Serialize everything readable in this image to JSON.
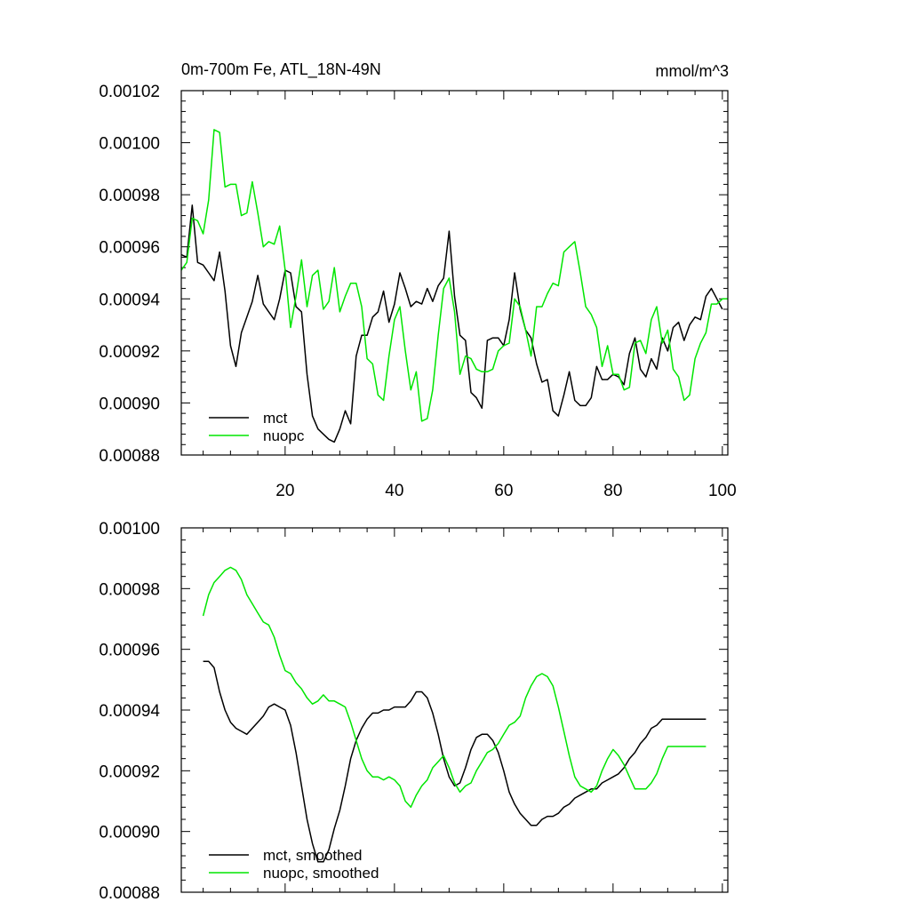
{
  "chart_data": [
    {
      "type": "line",
      "title": "0m-700m Fe, ATL_18N-49N",
      "units": "mmol/m^3",
      "xlabel": "",
      "ylabel": "",
      "xlim": [
        1,
        101
      ],
      "ylim": [
        0.00088,
        0.00102
      ],
      "xticks": [
        20,
        40,
        60,
        80,
        100
      ],
      "yticks": [
        0.00088,
        0.0009,
        0.00092,
        0.00094,
        0.00096,
        0.00098,
        0.001,
        0.00102
      ],
      "ytick_labels": [
        "0.00088",
        "0.00090",
        "0.00092",
        "0.00094",
        "0.00096",
        "0.00098",
        "0.00100",
        "0.00102"
      ],
      "legend": "bottom-left",
      "series": [
        {
          "name": "mct",
          "color": "#000000",
          "x": [
            1,
            2,
            3,
            4,
            5,
            6,
            7,
            8,
            9,
            10,
            11,
            12,
            13,
            14,
            15,
            16,
            17,
            18,
            19,
            20,
            21,
            22,
            23,
            24,
            25,
            26,
            27,
            28,
            29,
            30,
            31,
            32,
            33,
            34,
            35,
            36,
            37,
            38,
            39,
            40,
            41,
            42,
            43,
            44,
            45,
            46,
            47,
            48,
            49,
            50,
            51,
            52,
            53,
            54,
            55,
            56,
            57,
            58,
            59,
            60,
            61,
            62,
            63,
            64,
            65,
            66,
            67,
            68,
            69,
            70,
            71,
            72,
            73,
            74,
            75,
            76,
            77,
            78,
            79,
            80,
            81,
            82,
            83,
            84,
            85,
            86,
            87,
            88,
            89,
            90,
            91,
            92,
            93,
            94,
            95,
            96,
            97,
            98,
            99,
            100
          ],
          "values": [
            0.000957,
            0.000956,
            0.000976,
            0.000954,
            0.000953,
            0.00095,
            0.000947,
            0.000958,
            0.000943,
            0.000922,
            0.000914,
            0.000927,
            0.000933,
            0.000939,
            0.000949,
            0.000938,
            0.000935,
            0.000932,
            0.00094,
            0.000951,
            0.00095,
            0.000937,
            0.000935,
            0.000911,
            0.000895,
            0.00089,
            0.000888,
            0.000886,
            0.000885,
            0.00089,
            0.000897,
            0.000892,
            0.000918,
            0.000926,
            0.000926,
            0.000933,
            0.000935,
            0.000943,
            0.000931,
            0.000938,
            0.00095,
            0.000944,
            0.000937,
            0.000939,
            0.000938,
            0.000944,
            0.000939,
            0.000945,
            0.000948,
            0.000966,
            0.000941,
            0.000926,
            0.000924,
            0.000904,
            0.000902,
            0.000898,
            0.000924,
            0.000925,
            0.000925,
            0.000922,
            0.000932,
            0.00095,
            0.000936,
            0.000928,
            0.000925,
            0.000915,
            0.000908,
            0.000909,
            0.000897,
            0.000895,
            0.000903,
            0.000912,
            0.000901,
            0.000899,
            0.000899,
            0.000902,
            0.000914,
            0.000909,
            0.000909,
            0.000911,
            0.00091,
            0.000907,
            0.000919,
            0.000925,
            0.000913,
            0.00091,
            0.000917,
            0.000913,
            0.000925,
            0.00092,
            0.000929,
            0.000931,
            0.000924,
            0.00093,
            0.000933,
            0.000932,
            0.000941,
            0.000944,
            0.00094,
            0.000936
          ]
        },
        {
          "name": "nuopc",
          "color": "#00e600",
          "x": [
            1,
            2,
            3,
            4,
            5,
            6,
            7,
            8,
            9,
            10,
            11,
            12,
            13,
            14,
            15,
            16,
            17,
            18,
            19,
            20,
            21,
            22,
            23,
            24,
            25,
            26,
            27,
            28,
            29,
            30,
            31,
            32,
            33,
            34,
            35,
            36,
            37,
            38,
            39,
            40,
            41,
            42,
            43,
            44,
            45,
            46,
            47,
            48,
            49,
            50,
            51,
            52,
            53,
            54,
            55,
            56,
            57,
            58,
            59,
            60,
            61,
            62,
            63,
            64,
            65,
            66,
            67,
            68,
            69,
            70,
            71,
            72,
            73,
            74,
            75,
            76,
            77,
            78,
            79,
            80,
            81,
            82,
            83,
            84,
            85,
            86,
            87,
            88,
            89,
            90,
            91,
            92,
            93,
            94,
            95,
            96,
            97,
            98,
            99,
            100,
            101
          ],
          "values": [
            0.000951,
            0.000954,
            0.000971,
            0.00097,
            0.000965,
            0.000978,
            0.001005,
            0.001004,
            0.000983,
            0.000984,
            0.000984,
            0.000972,
            0.000973,
            0.000985,
            0.000973,
            0.00096,
            0.000962,
            0.000961,
            0.000968,
            0.000951,
            0.000929,
            0.000941,
            0.000955,
            0.000937,
            0.000949,
            0.000951,
            0.000936,
            0.000939,
            0.000952,
            0.000935,
            0.000941,
            0.000946,
            0.000946,
            0.000937,
            0.000917,
            0.000915,
            0.000903,
            0.000901,
            0.000918,
            0.000932,
            0.000937,
            0.00092,
            0.000905,
            0.000912,
            0.000893,
            0.000894,
            0.000905,
            0.000926,
            0.000944,
            0.000948,
            0.000935,
            0.000911,
            0.000918,
            0.000917,
            0.000913,
            0.000912,
            0.000912,
            0.000913,
            0.00092,
            0.000922,
            0.000923,
            0.00094,
            0.000937,
            0.000928,
            0.000918,
            0.000937,
            0.000937,
            0.000942,
            0.000946,
            0.000945,
            0.000958,
            0.00096,
            0.000962,
            0.00095,
            0.000937,
            0.000934,
            0.000929,
            0.000914,
            0.000922,
            0.000911,
            0.000911,
            0.000905,
            0.000906,
            0.000923,
            0.000924,
            0.000919,
            0.000932,
            0.000937,
            0.000923,
            0.000928,
            0.000913,
            0.00091,
            0.000901,
            0.000903,
            0.000917,
            0.000923,
            0.000927,
            0.000938,
            0.000938,
            0.00094,
            0.00094
          ]
        }
      ]
    },
    {
      "type": "line",
      "title": "",
      "xlabel": "",
      "ylabel": "",
      "xlim": [
        1,
        101
      ],
      "ylim": [
        0.00088,
        0.001
      ],
      "xticks": [
        20,
        40,
        60,
        80,
        100
      ],
      "yticks": [
        0.00088,
        0.0009,
        0.00092,
        0.00094,
        0.00096,
        0.00098,
        0.001
      ],
      "ytick_labels": [
        "0.00088",
        "0.00090",
        "0.00092",
        "0.00094",
        "0.00096",
        "0.00098",
        "0.00100"
      ],
      "legend": "bottom-left",
      "series": [
        {
          "name": "mct, smoothed",
          "color": "#000000",
          "x": [
            5,
            6,
            7,
            8,
            9,
            10,
            11,
            12,
            13,
            14,
            15,
            16,
            17,
            18,
            19,
            20,
            21,
            22,
            23,
            24,
            25,
            26,
            27,
            28,
            29,
            30,
            31,
            32,
            33,
            34,
            35,
            36,
            37,
            38,
            39,
            40,
            41,
            42,
            43,
            44,
            45,
            46,
            47,
            48,
            49,
            50,
            51,
            52,
            53,
            54,
            55,
            56,
            57,
            58,
            59,
            60,
            61,
            62,
            63,
            64,
            65,
            66,
            67,
            68,
            69,
            70,
            71,
            72,
            73,
            74,
            75,
            76,
            77,
            78,
            79,
            80,
            81,
            82,
            83,
            84,
            85,
            86,
            87,
            88,
            89,
            90,
            91,
            92,
            93,
            94,
            95,
            96,
            97
          ],
          "values": [
            0.000956,
            0.000956,
            0.000954,
            0.000946,
            0.00094,
            0.000936,
            0.000934,
            0.000933,
            0.000932,
            0.000934,
            0.000936,
            0.000938,
            0.000941,
            0.000942,
            0.000941,
            0.00094,
            0.000935,
            0.000926,
            0.000915,
            0.000904,
            0.000896,
            0.00089,
            0.00089,
            0.000894,
            0.000901,
            0.000907,
            0.000915,
            0.000924,
            0.00093,
            0.000934,
            0.000937,
            0.000939,
            0.000939,
            0.00094,
            0.00094,
            0.000941,
            0.000941,
            0.000941,
            0.000943,
            0.000946,
            0.000946,
            0.000944,
            0.000939,
            0.000932,
            0.000924,
            0.000918,
            0.000915,
            0.000916,
            0.000921,
            0.000927,
            0.000931,
            0.000932,
            0.000932,
            0.00093,
            0.000926,
            0.00092,
            0.000913,
            0.000909,
            0.000906,
            0.000904,
            0.000902,
            0.000902,
            0.000904,
            0.000905,
            0.000905,
            0.000906,
            0.000908,
            0.000909,
            0.000911,
            0.000912,
            0.000913,
            0.000914,
            0.000914,
            0.000916,
            0.000917,
            0.000918,
            0.000919,
            0.000921,
            0.000924,
            0.000926,
            0.000929,
            0.000931,
            0.000934,
            0.000935,
            0.000937,
            0.000937,
            0.000937,
            0.000937,
            0.000937,
            0.000937,
            0.000937,
            0.000937,
            0.000937
          ]
        },
        {
          "name": "nuopc, smoothed",
          "color": "#00e600",
          "x": [
            5,
            6,
            7,
            8,
            9,
            10,
            11,
            12,
            13,
            14,
            15,
            16,
            17,
            18,
            19,
            20,
            21,
            22,
            23,
            24,
            25,
            26,
            27,
            28,
            29,
            30,
            31,
            32,
            33,
            34,
            35,
            36,
            37,
            38,
            39,
            40,
            41,
            42,
            43,
            44,
            45,
            46,
            47,
            48,
            49,
            50,
            51,
            52,
            53,
            54,
            55,
            56,
            57,
            58,
            59,
            60,
            61,
            62,
            63,
            64,
            65,
            66,
            67,
            68,
            69,
            70,
            71,
            72,
            73,
            74,
            75,
            76,
            77,
            78,
            79,
            80,
            81,
            82,
            83,
            84,
            85,
            86,
            87,
            88,
            89,
            90,
            91,
            92,
            93,
            94,
            95,
            96,
            97
          ],
          "values": [
            0.000971,
            0.000978,
            0.000982,
            0.000984,
            0.000986,
            0.000987,
            0.000986,
            0.000983,
            0.000978,
            0.000975,
            0.000972,
            0.000969,
            0.000968,
            0.000964,
            0.000958,
            0.000953,
            0.000952,
            0.000949,
            0.000947,
            0.000944,
            0.000942,
            0.000943,
            0.000945,
            0.000943,
            0.000943,
            0.000942,
            0.000941,
            0.000936,
            0.00093,
            0.000924,
            0.00092,
            0.000918,
            0.000918,
            0.000917,
            0.000918,
            0.000917,
            0.000915,
            0.00091,
            0.000908,
            0.000912,
            0.000915,
            0.000917,
            0.000921,
            0.000923,
            0.000925,
            0.000921,
            0.000916,
            0.000913,
            0.000915,
            0.000916,
            0.00092,
            0.000923,
            0.000926,
            0.000927,
            0.000929,
            0.000932,
            0.000935,
            0.000936,
            0.000938,
            0.000944,
            0.000948,
            0.000951,
            0.000952,
            0.000951,
            0.000948,
            0.000941,
            0.000933,
            0.000925,
            0.000918,
            0.000915,
            0.000914,
            0.000913,
            0.000915,
            0.00092,
            0.000924,
            0.000927,
            0.000925,
            0.000922,
            0.000918,
            0.000914,
            0.000914,
            0.000914,
            0.000916,
            0.000919,
            0.000924,
            0.000928,
            0.000928,
            0.000928,
            0.000928,
            0.000928,
            0.000928,
            0.000928,
            0.000928
          ]
        }
      ]
    }
  ]
}
